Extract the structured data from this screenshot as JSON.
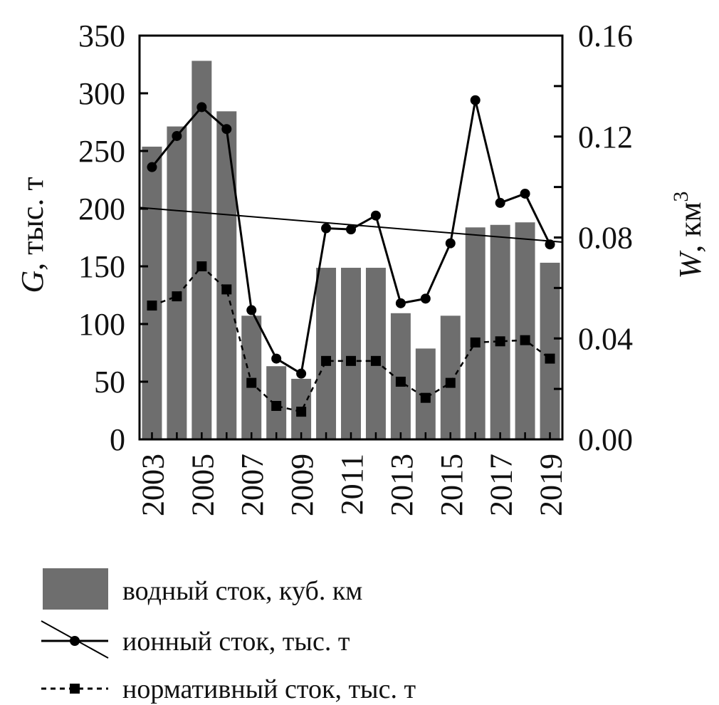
{
  "chart_data": {
    "type": "bar",
    "x": [
      2003,
      2004,
      2005,
      2006,
      2007,
      2008,
      2009,
      2010,
      2011,
      2012,
      2013,
      2014,
      2015,
      2016,
      2017,
      2018,
      2019
    ],
    "x_tick_labels": [
      "2003",
      "2005",
      "2007",
      "2009",
      "2011",
      "2013",
      "2015",
      "2017",
      "2019"
    ],
    "y_left": {
      "label_symbol": "G",
      "label_rest": ", тыс. т",
      "ylim": [
        0,
        350
      ],
      "ticks": [
        "0",
        "50",
        "100",
        "150",
        "200",
        "250",
        "300",
        "350"
      ]
    },
    "y_right": {
      "label_symbol": "W",
      "label_rest": ", км",
      "label_sup": "3",
      "ylim": [
        0,
        0.16
      ],
      "ticks": [
        "0.00",
        "0.04",
        "0.08",
        "0.12",
        "0.16"
      ]
    },
    "series": [
      {
        "name": "водный сток, куб. км",
        "kind": "bar",
        "axis": "right",
        "values": [
          0.116,
          0.124,
          0.15,
          0.13,
          0.049,
          0.029,
          0.024,
          0.068,
          0.068,
          0.068,
          0.05,
          0.036,
          0.049,
          0.084,
          0.085,
          0.086,
          0.07
        ]
      },
      {
        "name": "ионный сток, тыс. т",
        "kind": "line",
        "axis": "left",
        "values": [
          236,
          263,
          288,
          269,
          112,
          70,
          57,
          183,
          182,
          194,
          118,
          122,
          170,
          294,
          205,
          213,
          169
        ]
      },
      {
        "name": "нормативный сток, тыс. т",
        "kind": "dashed-line",
        "axis": "left",
        "values": [
          116,
          124,
          150,
          130,
          49,
          29,
          24,
          68,
          68,
          68,
          50,
          36,
          49,
          84,
          85,
          86,
          70
        ]
      },
      {
        "kind": "trend",
        "axis": "left",
        "x": [
          2002.5,
          2019.5
        ],
        "values": [
          201,
          171
        ]
      }
    ],
    "legend_placement": "bottom-left",
    "grid": false,
    "colors": {
      "bar": "#6e6e6e",
      "line": "#000000"
    }
  }
}
